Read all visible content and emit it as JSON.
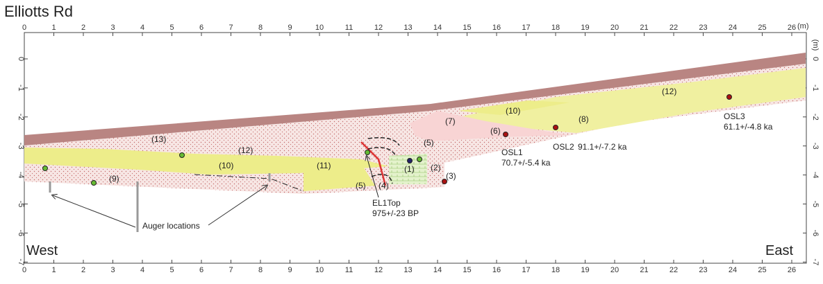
{
  "header": {
    "title": "Elliotts Rd"
  },
  "axes": {
    "x_ticks": [
      0,
      1,
      2,
      3,
      4,
      5,
      6,
      7,
      8,
      9,
      10,
      11,
      12,
      13,
      14,
      15,
      16,
      17,
      18,
      19,
      20,
      21,
      22,
      23,
      24,
      25,
      26
    ],
    "x_unit": "(m)",
    "y_ticks": [
      0,
      -1,
      -2,
      -3,
      -4,
      -5,
      -6,
      -7
    ],
    "y_unit": "(m)"
  },
  "layers": [
    {
      "label": "(13)"
    },
    {
      "label": "(12)"
    },
    {
      "label": "(12)"
    },
    {
      "label": "(10)"
    },
    {
      "label": "(10)"
    },
    {
      "label": "(11)"
    },
    {
      "label": "(9)"
    },
    {
      "label": "(8)"
    },
    {
      "label": "(7)"
    },
    {
      "label": "(6)"
    },
    {
      "label": "(5)"
    },
    {
      "label": "(5)"
    },
    {
      "label": "(4)"
    },
    {
      "label": "(3)"
    },
    {
      "label": "(2)"
    },
    {
      "label": "(1)"
    }
  ],
  "samples": [
    {
      "label": "EL1Top",
      "age": "975+/-23 BP"
    },
    {
      "label": "OSL1",
      "age": "70.7+/-5.4 ka"
    },
    {
      "label": "OSL2",
      "age": "91.1+/-7.2 ka"
    },
    {
      "label": "OSL3",
      "age": "61.1+/-4.8 ka"
    }
  ],
  "annotations": {
    "auger": "Auger locations",
    "west": "West",
    "east": "East"
  }
}
